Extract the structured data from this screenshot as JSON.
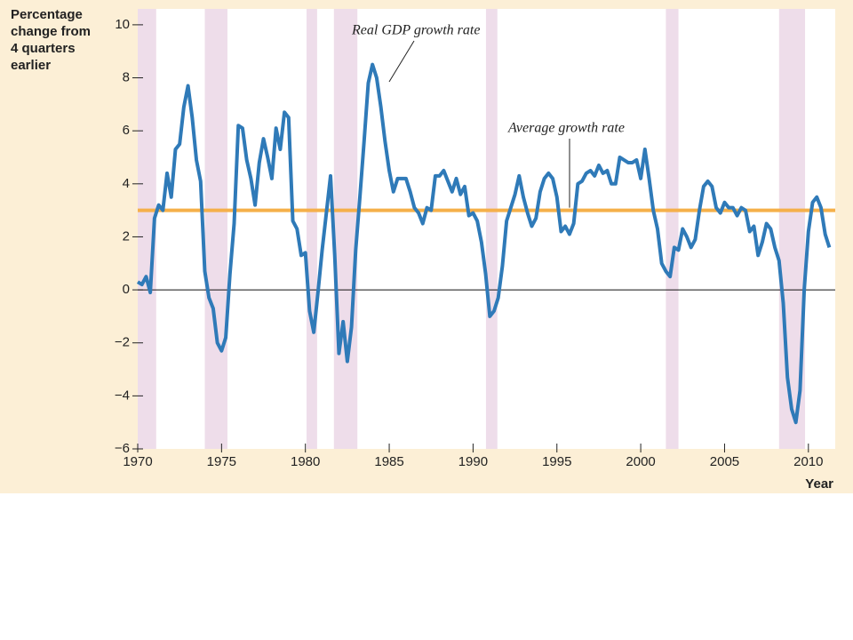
{
  "chart_data": {
    "type": "line",
    "ylabel": [
      "Percentage",
      "change from",
      "4 quarters",
      "earlier"
    ],
    "xlabel": "Year",
    "annotations": [
      "Real GDP growth rate",
      "Average growth rate"
    ],
    "average": 3,
    "average_color": "#f5b04a",
    "recession_color": "#eeddea",
    "recessions": [
      [
        1970,
        1971.1
      ],
      [
        1974,
        1975.35
      ],
      [
        1980.07,
        1980.7
      ],
      [
        1981.7,
        1983.1
      ],
      [
        1990.77,
        1991.45
      ],
      [
        2001.5,
        2002.25
      ],
      [
        2008.25,
        2009.8
      ]
    ],
    "xlim": [
      1970,
      2011.6
    ],
    "ylim": [
      -6,
      10.6
    ],
    "xticks": [
      1970,
      1975,
      1980,
      1985,
      1990,
      1995,
      2000,
      2005,
      2010
    ],
    "yticks": [
      10,
      8,
      6,
      4,
      2,
      0,
      {
        "value": -2,
        "label": "−2"
      },
      {
        "value": -4,
        "label": "−4"
      },
      {
        "value": -6,
        "label": "−6"
      }
    ],
    "grid": false,
    "x": [
      1970,
      1970.25,
      1970.5,
      1970.75,
      1971,
      1971.25,
      1971.5,
      1971.75,
      1972,
      1972.25,
      1972.5,
      1972.75,
      1973,
      1973.25,
      1973.5,
      1973.75,
      1974,
      1974.25,
      1974.5,
      1974.75,
      1975,
      1975.25,
      1975.5,
      1975.75,
      1976,
      1976.25,
      1976.5,
      1976.75,
      1977,
      1977.25,
      1977.5,
      1977.75,
      1978,
      1978.25,
      1978.5,
      1978.75,
      1979,
      1979.25,
      1979.5,
      1979.75,
      1980,
      1980.25,
      1980.5,
      1980.75,
      1981,
      1981.25,
      1981.5,
      1981.75,
      1982,
      1982.25,
      1982.5,
      1982.75,
      1983,
      1983.25,
      1983.5,
      1983.75,
      1984,
      1984.25,
      1984.5,
      1984.75,
      1985,
      1985.25,
      1985.5,
      1985.75,
      1986,
      1986.25,
      1986.5,
      1986.75,
      1987,
      1987.25,
      1987.5,
      1987.75,
      1988,
      1988.25,
      1988.5,
      1988.75,
      1989,
      1989.25,
      1989.5,
      1989.75,
      1990,
      1990.25,
      1990.5,
      1990.75,
      1991,
      1991.25,
      1991.5,
      1991.75,
      1992,
      1992.25,
      1992.5,
      1992.75,
      1993,
      1993.25,
      1993.5,
      1993.75,
      1994,
      1994.25,
      1994.5,
      1994.75,
      1995,
      1995.25,
      1995.5,
      1995.75,
      1996,
      1996.25,
      1996.5,
      1996.75,
      1997,
      1997.25,
      1997.5,
      1997.75,
      1998,
      1998.25,
      1998.5,
      1998.75,
      1999,
      1999.25,
      1999.5,
      1999.75,
      2000,
      2000.25,
      2000.5,
      2000.75,
      2001,
      2001.25,
      2001.5,
      2001.75,
      2002,
      2002.25,
      2002.5,
      2002.75,
      2003,
      2003.25,
      2003.5,
      2003.75,
      2004,
      2004.25,
      2004.5,
      2004.75,
      2005,
      2005.25,
      2005.5,
      2005.75,
      2006,
      2006.25,
      2006.5,
      2006.75,
      2007,
      2007.25,
      2007.5,
      2007.75,
      2008,
      2008.25,
      2008.5,
      2008.75,
      2009,
      2009.25,
      2009.5,
      2009.75,
      2010,
      2010.25,
      2010.5,
      2010.75,
      2011,
      2011.25
    ],
    "series": [
      {
        "color": "#2f7ab8",
        "values": [
          0.3,
          0.2,
          0.5,
          -0.1,
          2.7,
          3.2,
          3.0,
          4.4,
          3.5,
          5.3,
          5.5,
          6.9,
          7.7,
          6.5,
          4.9,
          4.1,
          0.7,
          -0.3,
          -0.7,
          -2.0,
          -2.3,
          -1.8,
          0.6,
          2.5,
          6.2,
          6.1,
          4.9,
          4.2,
          3.2,
          4.8,
          5.7,
          5.0,
          4.2,
          6.1,
          5.3,
          6.7,
          6.5,
          2.6,
          2.3,
          1.3,
          1.4,
          -0.8,
          -1.6,
          -0.1,
          1.5,
          2.9,
          4.3,
          1.3,
          -2.4,
          -1.2,
          -2.7,
          -1.4,
          1.5,
          3.5,
          5.6,
          7.8,
          8.5,
          8.0,
          6.9,
          5.6,
          4.5,
          3.7,
          4.2,
          4.2,
          4.2,
          3.7,
          3.1,
          2.9,
          2.5,
          3.1,
          3.0,
          4.3,
          4.3,
          4.5,
          4.1,
          3.7,
          4.2,
          3.6,
          3.9,
          2.8,
          2.9,
          2.6,
          1.8,
          0.6,
          -1.0,
          -0.8,
          -0.3,
          0.9,
          2.6,
          3.1,
          3.6,
          4.3,
          3.5,
          2.9,
          2.4,
          2.7,
          3.7,
          4.2,
          4.4,
          4.2,
          3.5,
          2.2,
          2.4,
          2.1,
          2.5,
          4.0,
          4.1,
          4.4,
          4.5,
          4.3,
          4.7,
          4.4,
          4.5,
          4.0,
          4.0,
          5.0,
          4.9,
          4.8,
          4.8,
          4.9,
          4.2,
          5.3,
          4.2,
          3.0,
          2.3,
          1.0,
          0.7,
          0.5,
          1.6,
          1.5,
          2.3,
          2.0,
          1.6,
          1.9,
          3.0,
          3.9,
          4.1,
          3.9,
          3.1,
          2.9,
          3.3,
          3.1,
          3.1,
          2.8,
          3.1,
          3.0,
          2.2,
          2.4,
          1.3,
          1.8,
          2.5,
          2.3,
          1.6,
          1.1,
          -0.5,
          -3.3,
          -4.5,
          -5.0,
          -3.8,
          0.0,
          2.2,
          3.3,
          3.5,
          3.1,
          2.1,
          1.6
        ]
      }
    ]
  }
}
